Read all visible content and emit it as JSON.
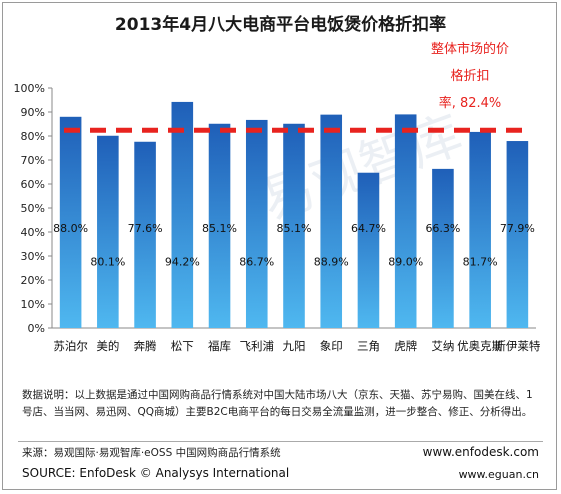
{
  "chart_data": {
    "type": "bar",
    "title": "2013年4月八大电商平台电饭煲价格折扣率",
    "categories": [
      "苏泊尔",
      "美的",
      "奔腾",
      "松下",
      "福库",
      "飞利浦",
      "九阳",
      "象印",
      "三角",
      "虎牌",
      "艾纳",
      "优奥克斯",
      "斯伊莱特"
    ],
    "values": [
      88.0,
      80.1,
      77.6,
      94.2,
      85.1,
      86.7,
      85.1,
      88.9,
      64.7,
      89.0,
      66.3,
      81.7,
      77.9
    ],
    "value_labels": [
      "88.0%",
      "80.1%",
      "77.6%",
      "94.2%",
      "85.1%",
      "86.7%",
      "85.1%",
      "88.9%",
      "64.7%",
      "89.0%",
      "66.3%",
      "81.7%",
      "77.9%"
    ],
    "y_ticks": [
      "0%",
      "10%",
      "20%",
      "30%",
      "40%",
      "50%",
      "60%",
      "70%",
      "80%",
      "90%",
      "100%"
    ],
    "ylim": [
      0,
      100
    ],
    "reference_line": {
      "value": 82.4,
      "color": "#e8231f"
    },
    "annotation_lines": [
      "整体市场的价",
      "格折扣",
      "率, 82.4%"
    ],
    "bar_color_top": "#1f5fb8",
    "bar_color_bottom": "#4fb8f0",
    "grid": false,
    "legend": "none"
  },
  "notes": "数据说明：以上数据是通过中国网购商品行情系统对中国大陆市场八大（京东、天猫、苏宁易购、国美在线、1号店、当当网、易迅网、QQ商城）主要B2C电商平台的每日交易全流量监测，进一步整合、修正、分析得出。",
  "source_cn": "来源：易观国际·易观智库·eOSS 中国网购商品行情系统",
  "source_en": "SOURCE: EnfoDesk © Analysys International",
  "url_enfodesk": "www.enfodesk.com",
  "url_eguan": "www.eguan.cn",
  "watermark": "易观智库"
}
